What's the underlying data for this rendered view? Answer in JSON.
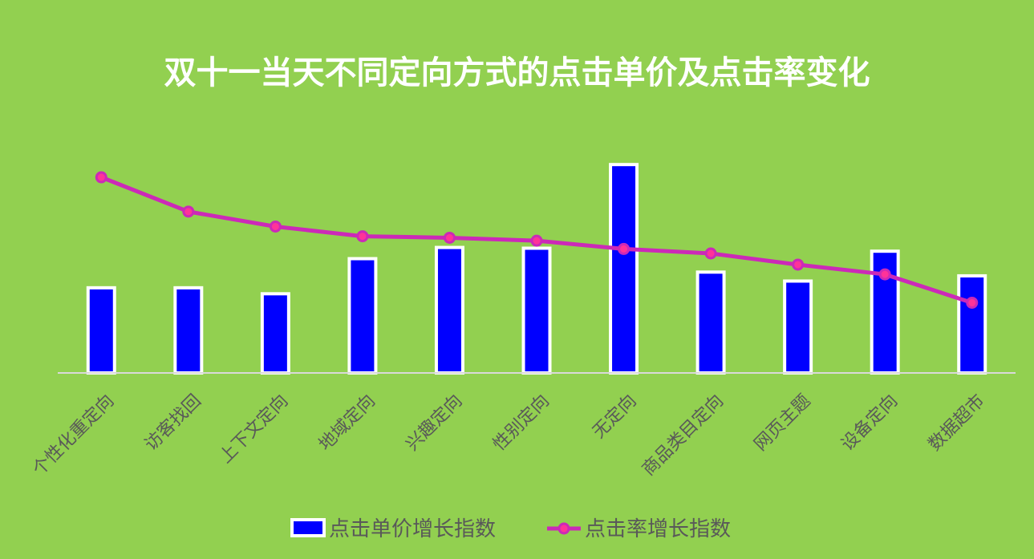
{
  "chart_data": {
    "type": "bar",
    "title": "双十一当天不同定向方式的点击单价及点击率变化",
    "categories": [
      "个性化重定向",
      "访客找回",
      "上下文定向",
      "地域定向",
      "兴趣定向",
      "性别定向",
      "无定向",
      "商品类目定向",
      "网页主题",
      "设备定向",
      "数据超市"
    ],
    "series": [
      {
        "name": "点击单价增长指数",
        "type": "bar",
        "color": "#0000ff",
        "values": [
          114,
          114,
          106,
          153,
          168,
          167,
          279,
          135,
          123,
          163,
          130
        ]
      },
      {
        "name": "点击率增长指数",
        "type": "line",
        "color": "#cc29b8",
        "values": [
          262,
          216,
          196,
          183,
          181,
          177,
          166,
          160,
          145,
          132,
          94
        ]
      }
    ],
    "ylim": [
      0,
      320
    ],
    "grid": false,
    "legend_position": "bottom"
  }
}
